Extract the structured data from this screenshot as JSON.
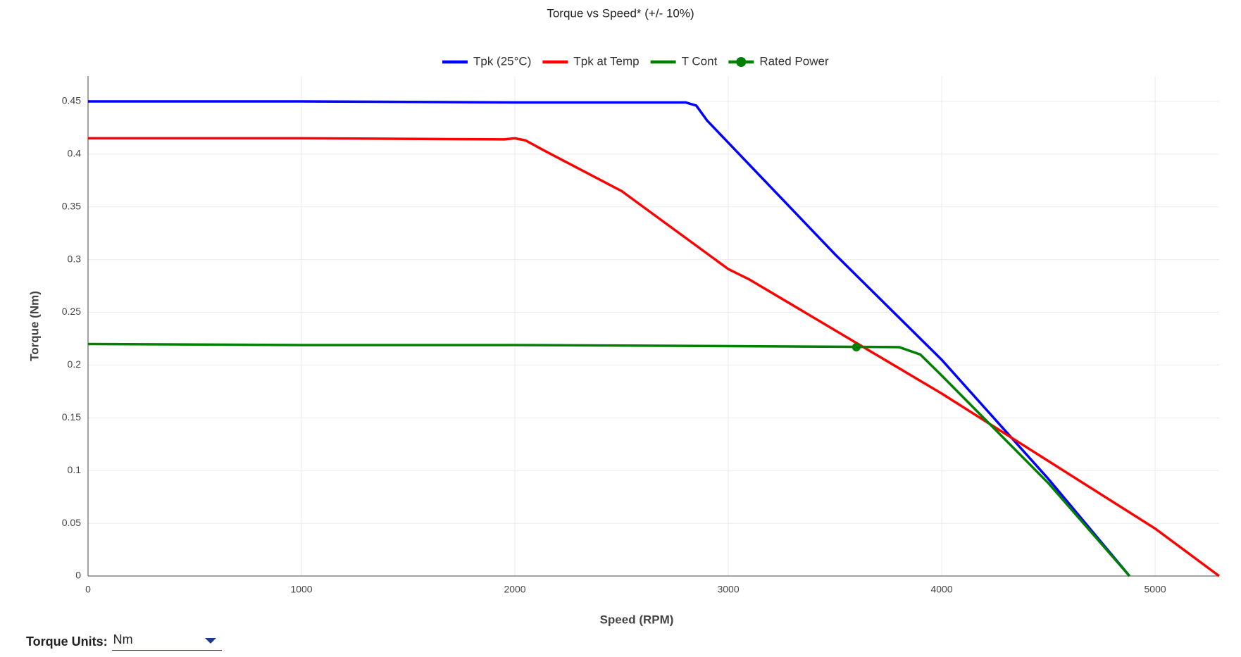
{
  "chart_data": {
    "type": "line",
    "title": "Torque vs Speed* (+/- 10%)",
    "x_label": "Speed (RPM)",
    "y_label": "Torque (Nm)",
    "xlim": [
      0,
      5300
    ],
    "xticks": [
      0,
      1000,
      2000,
      3000,
      4000,
      5000
    ],
    "ylim": [
      0,
      0.474
    ],
    "yticks": [
      0,
      0.05,
      0.1,
      0.15,
      0.2,
      0.25,
      0.3,
      0.35,
      0.4,
      0.45
    ],
    "grid": true,
    "legend": "top",
    "series": [
      {
        "name": "Tpk (25°C)",
        "color": "#0000ff",
        "mode": "lines",
        "x": [
          0,
          1000,
          2000,
          2800,
          2850,
          2900,
          3500,
          4000,
          4500,
          4880
        ],
        "values": [
          0.45,
          0.45,
          0.449,
          0.449,
          0.446,
          0.432,
          0.305,
          0.205,
          0.092,
          0
        ]
      },
      {
        "name": "Tpk at Temp",
        "color": "#ff0000",
        "mode": "lines",
        "x": [
          0,
          1000,
          1950,
          2000,
          2050,
          2150,
          2500,
          3000,
          3100,
          3600,
          4000,
          4500,
          5000,
          5300
        ],
        "values": [
          0.415,
          0.415,
          0.414,
          0.415,
          0.413,
          0.402,
          0.365,
          0.291,
          0.281,
          0.221,
          0.173,
          0.109,
          0.045,
          0
        ]
      },
      {
        "name": "T Cont",
        "color": "#008000",
        "mode": "lines",
        "x": [
          0,
          1000,
          2000,
          3000,
          3800,
          3900,
          4000,
          4500,
          4880
        ],
        "values": [
          0.22,
          0.219,
          0.219,
          0.218,
          0.217,
          0.21,
          0.19,
          0.088,
          0
        ]
      },
      {
        "name": "Rated Power",
        "color": "#008000",
        "mode": "markers",
        "x": [
          3600
        ],
        "values": [
          0.217
        ]
      }
    ]
  },
  "controls": {
    "torque_units_label": "Torque Units:",
    "torque_units_value": "Nm"
  }
}
